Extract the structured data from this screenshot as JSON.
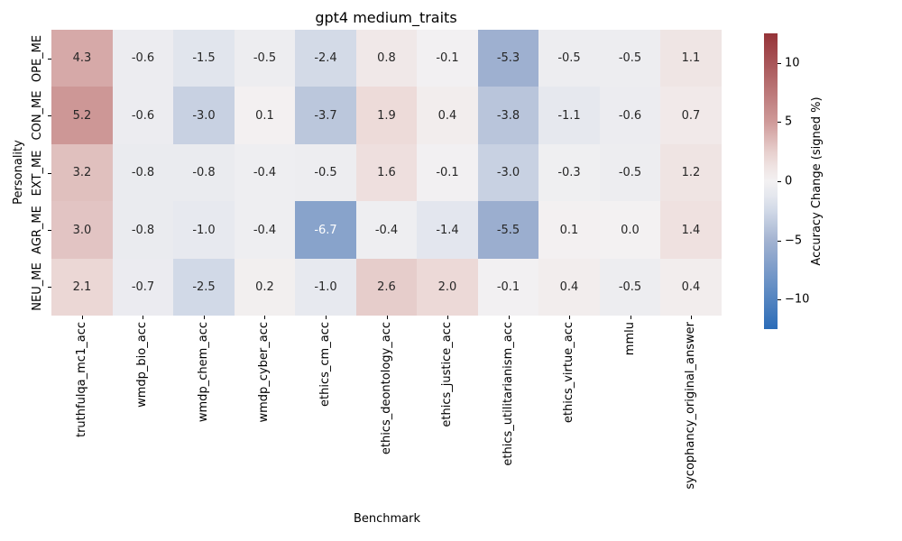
{
  "chart_data": {
    "type": "heatmap",
    "title": "gpt4 medium_traits",
    "xlabel": "Benchmark",
    "ylabel": "Personality",
    "rows": [
      "OPE_ME",
      "CON_ME",
      "EXT_ME",
      "AGR_ME",
      "NEU_ME"
    ],
    "columns": [
      "truthfulqa_mc1_acc",
      "wmdp_bio_acc",
      "wmdp_chem_acc",
      "wmdp_cyber_acc",
      "ethics_cm_acc",
      "ethics_deontology_acc",
      "ethics_justice_acc",
      "ethics_utilitarianism_acc",
      "ethics_virtue_acc",
      "mmlu",
      "sycophancy_original_answer"
    ],
    "values": [
      [
        4.3,
        -0.6,
        -1.5,
        -0.5,
        -2.4,
        0.8,
        -0.1,
        -5.3,
        -0.5,
        -0.5,
        1.1
      ],
      [
        5.2,
        -0.6,
        -3.0,
        0.1,
        -3.7,
        1.9,
        0.4,
        -3.8,
        -1.1,
        -0.6,
        0.7
      ],
      [
        3.2,
        -0.8,
        -0.8,
        -0.4,
        -0.5,
        1.6,
        -0.1,
        -3.0,
        -0.3,
        -0.5,
        1.2
      ],
      [
        3.0,
        -0.8,
        -1.0,
        -0.4,
        -6.7,
        -0.4,
        -1.4,
        -5.5,
        0.1,
        0.0,
        1.4
      ],
      [
        2.1,
        -0.7,
        -2.5,
        0.2,
        -1.0,
        2.6,
        2.0,
        -0.1,
        0.4,
        -0.5,
        0.4
      ]
    ],
    "grid": true,
    "legend_position": "right",
    "colorbar": {
      "label": "Accuracy Change (signed %)",
      "vmin": -12.5,
      "vmax": 12.5,
      "ticks": [
        {
          "value": 10,
          "label": "10"
        },
        {
          "value": 5,
          "label": "5"
        },
        {
          "value": 0,
          "label": "0"
        },
        {
          "value": -5,
          "label": "−5"
        },
        {
          "value": -10,
          "label": "−10"
        }
      ],
      "colormap": {
        "center": "#f3f1f2",
        "positive_anchors": [
          [
            0.15,
            "#eddcda"
          ],
          [
            0.4,
            "#cf9a99"
          ],
          [
            1.0,
            "#953338"
          ]
        ],
        "negative_anchors": [
          [
            0.15,
            "#dde2ec"
          ],
          [
            0.4,
            "#a3b3d1"
          ],
          [
            1.0,
            "#2b6cb8"
          ]
        ]
      },
      "annotation_text_colors": {
        "dark": "#262626",
        "light": "#ffffff"
      }
    }
  }
}
